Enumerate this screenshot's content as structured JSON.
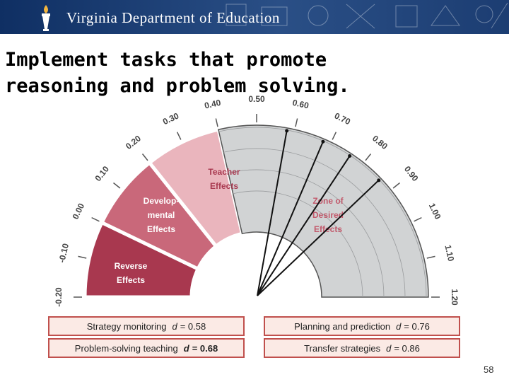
{
  "banner": {
    "title": "Virginia Department of Education"
  },
  "slide": {
    "title_line1": "Implement tasks that promote",
    "title_line2": "reasoning and problem solving.",
    "page_number": "58"
  },
  "gauge": {
    "ticks": [
      "-0.20",
      "-0.10",
      "0.00",
      "0.10",
      "0.20",
      "0.30",
      "0.40",
      "0.50",
      "0.60",
      "0.70",
      "0.80",
      "0.90",
      "1.00",
      "1.10",
      "1.20"
    ],
    "zones": {
      "reverse": {
        "line1": "Reverse",
        "line2": "Effects"
      },
      "developmental": {
        "line1": "Develop-",
        "line2": "mental",
        "line3": "Effects"
      },
      "teacher": {
        "line1": "Teacher",
        "line2": "Effects"
      },
      "desired": {
        "line1": "Zone of",
        "line2": "Desired",
        "line3": "Effects"
      }
    },
    "colors": {
      "reverse": "#a8384f",
      "developmental": "#c9687a",
      "teacher": "#eab5bd",
      "desired": "#d1d3d4"
    }
  },
  "strategies": [
    {
      "label": "Strategy monitoring",
      "d": "d",
      "value": "= 0.58",
      "bold": false
    },
    {
      "label": "Planning and prediction",
      "d": "d",
      "value": "= 0.76",
      "bold": false
    },
    {
      "label": "Problem-solving teaching",
      "d": "d",
      "value": "= 0.68",
      "bold": true
    },
    {
      "label": "Transfer strategies",
      "d": "d",
      "value": "= 0.86",
      "bold": false
    }
  ]
}
